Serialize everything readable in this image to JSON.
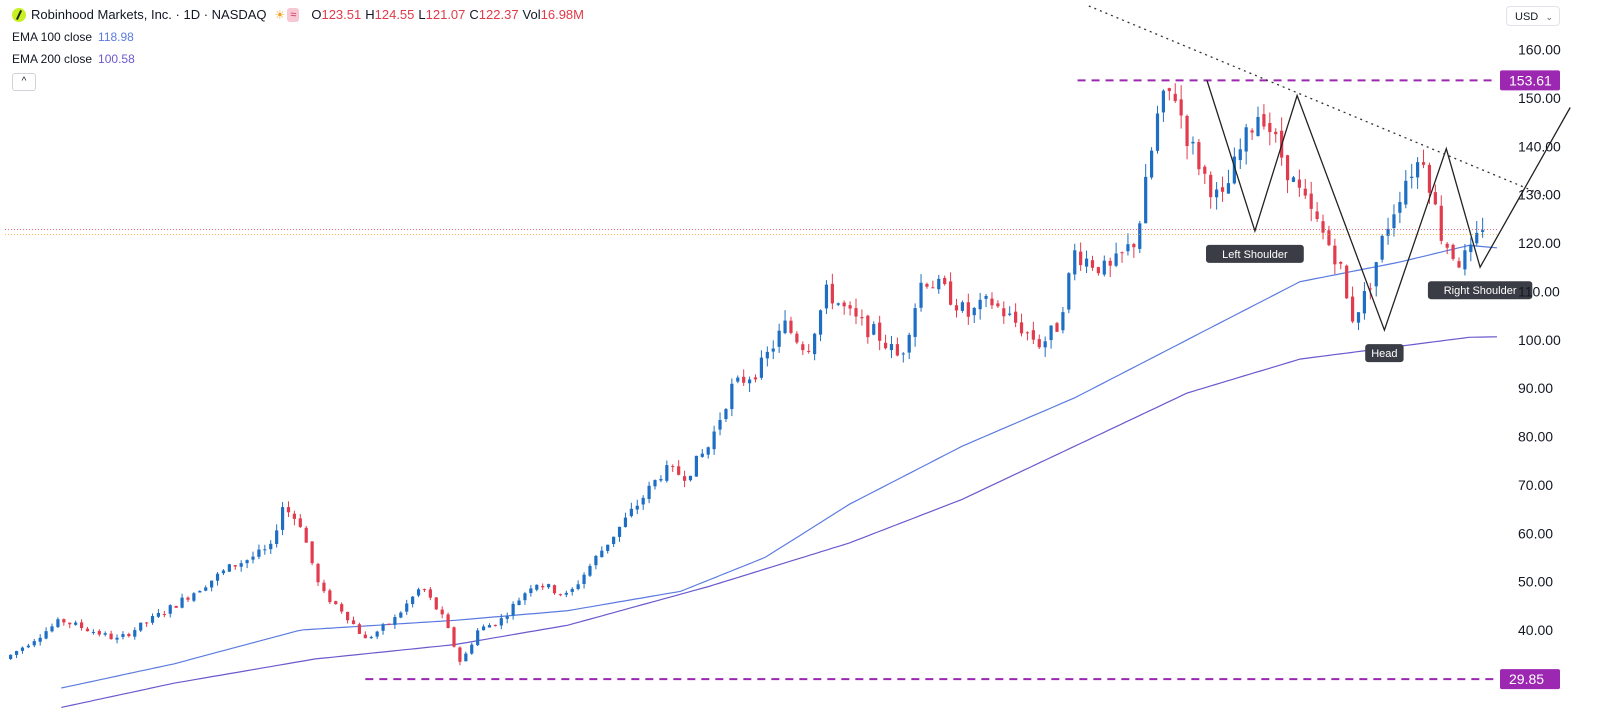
{
  "header": {
    "title": "Robinhood Markets, Inc. · 1D · NASDAQ",
    "wave_icon": "≈",
    "ohlc": [
      {
        "label": "O",
        "value": "123.51"
      },
      {
        "label": "H",
        "value": "124.55"
      },
      {
        "label": "L",
        "value": "121.07"
      },
      {
        "label": "C",
        "value": "122.37"
      },
      {
        "label": "Vol",
        "value": "16.98M"
      }
    ],
    "collapse_icon": "^"
  },
  "indicators": [
    {
      "label": "EMA 100 close",
      "value": "118.98",
      "color": "#5b7be0"
    },
    {
      "label": "EMA 200 close",
      "value": "100.58",
      "color": "#6a5acd"
    }
  ],
  "currency": "USD",
  "chart_data": {
    "type": "candlestick",
    "y_axis": {
      "min": 27,
      "max": 165,
      "ticks": [
        "160.00",
        "150.00",
        "140.00",
        "130.00",
        "120.00",
        "110.00",
        "100.00",
        "90.00",
        "80.00",
        "70.00",
        "60.00",
        "50.00",
        "40.00"
      ]
    },
    "levels": [
      {
        "label": "153.61",
        "value": 153.61,
        "color": "#9c27b0"
      },
      {
        "label": "29.85",
        "value": 29.85,
        "color": "#9c27b0"
      }
    ],
    "current_price": 122.37,
    "colors": {
      "up": "#1e6fc4",
      "down": "#e23b4e",
      "ema100": "#5b7be0",
      "ema200": "#6a5acd",
      "pattern": "#222222"
    },
    "price_anchors": [
      [
        0,
        34
      ],
      [
        20,
        42
      ],
      [
        40,
        38
      ],
      [
        60,
        45
      ],
      [
        80,
        53
      ],
      [
        95,
        57
      ],
      [
        98,
        66
      ],
      [
        105,
        62
      ],
      [
        112,
        48
      ],
      [
        120,
        44
      ],
      [
        128,
        38
      ],
      [
        138,
        42
      ],
      [
        148,
        49
      ],
      [
        156,
        42
      ],
      [
        162,
        33
      ],
      [
        168,
        40
      ],
      [
        176,
        42
      ],
      [
        188,
        50
      ],
      [
        200,
        47
      ],
      [
        210,
        55
      ],
      [
        222,
        64
      ],
      [
        234,
        73
      ],
      [
        242,
        72
      ],
      [
        250,
        78
      ],
      [
        258,
        90
      ],
      [
        268,
        94
      ],
      [
        277,
        103
      ],
      [
        285,
        98
      ],
      [
        292,
        110
      ],
      [
        302,
        104
      ],
      [
        310,
        101
      ],
      [
        318,
        96
      ],
      [
        326,
        113
      ],
      [
        334,
        110
      ],
      [
        342,
        105
      ],
      [
        350,
        108
      ],
      [
        358,
        104
      ],
      [
        368,
        99
      ],
      [
        374,
        103
      ],
      [
        380,
        118
      ],
      [
        392,
        114
      ],
      [
        402,
        121
      ],
      [
        410,
        148
      ],
      [
        415,
        152
      ],
      [
        420,
        142
      ],
      [
        426,
        134
      ],
      [
        432,
        128
      ],
      [
        438,
        138
      ],
      [
        446,
        148
      ],
      [
        452,
        140
      ],
      [
        458,
        132
      ],
      [
        466,
        124
      ],
      [
        474,
        116
      ],
      [
        478,
        104
      ],
      [
        484,
        110
      ],
      [
        490,
        122
      ],
      [
        498,
        134
      ],
      [
        504,
        138
      ],
      [
        510,
        122
      ],
      [
        516,
        116
      ],
      [
        521,
        118
      ],
      [
        525,
        124
      ]
    ],
    "ema100_points": [
      [
        20,
        28
      ],
      [
        60,
        33
      ],
      [
        105,
        40
      ],
      [
        160,
        42
      ],
      [
        200,
        44
      ],
      [
        240,
        48
      ],
      [
        270,
        55
      ],
      [
        300,
        66
      ],
      [
        340,
        78
      ],
      [
        380,
        88
      ],
      [
        420,
        100
      ],
      [
        460,
        112
      ],
      [
        495,
        116
      ],
      [
        520,
        119.5
      ],
      [
        530,
        119
      ]
    ],
    "ema200_points": [
      [
        20,
        24
      ],
      [
        60,
        29
      ],
      [
        110,
        34
      ],
      [
        160,
        37
      ],
      [
        200,
        41
      ],
      [
        250,
        49
      ],
      [
        300,
        58
      ],
      [
        340,
        67
      ],
      [
        380,
        78
      ],
      [
        420,
        89
      ],
      [
        460,
        96
      ],
      [
        500,
        99
      ],
      [
        520,
        100.5
      ],
      [
        530,
        100.6
      ]
    ],
    "pattern": {
      "zigzag": [
        [
          427,
          153.6
        ],
        [
          444,
          122.5
        ],
        [
          459,
          150.5
        ],
        [
          490,
          102
        ],
        [
          512,
          139.5
        ],
        [
          524,
          115
        ],
        [
          556,
          148
        ]
      ],
      "trendline": [
        [
          385,
          169
        ],
        [
          548,
          129.5
        ]
      ],
      "labels": [
        {
          "text": "Left Shoulder",
          "x": 444,
          "y": 122.5
        },
        {
          "text": "Head",
          "x": 490,
          "y": 102
        },
        {
          "text": "Right Shoulder",
          "x": 524,
          "y": 115
        }
      ]
    }
  }
}
